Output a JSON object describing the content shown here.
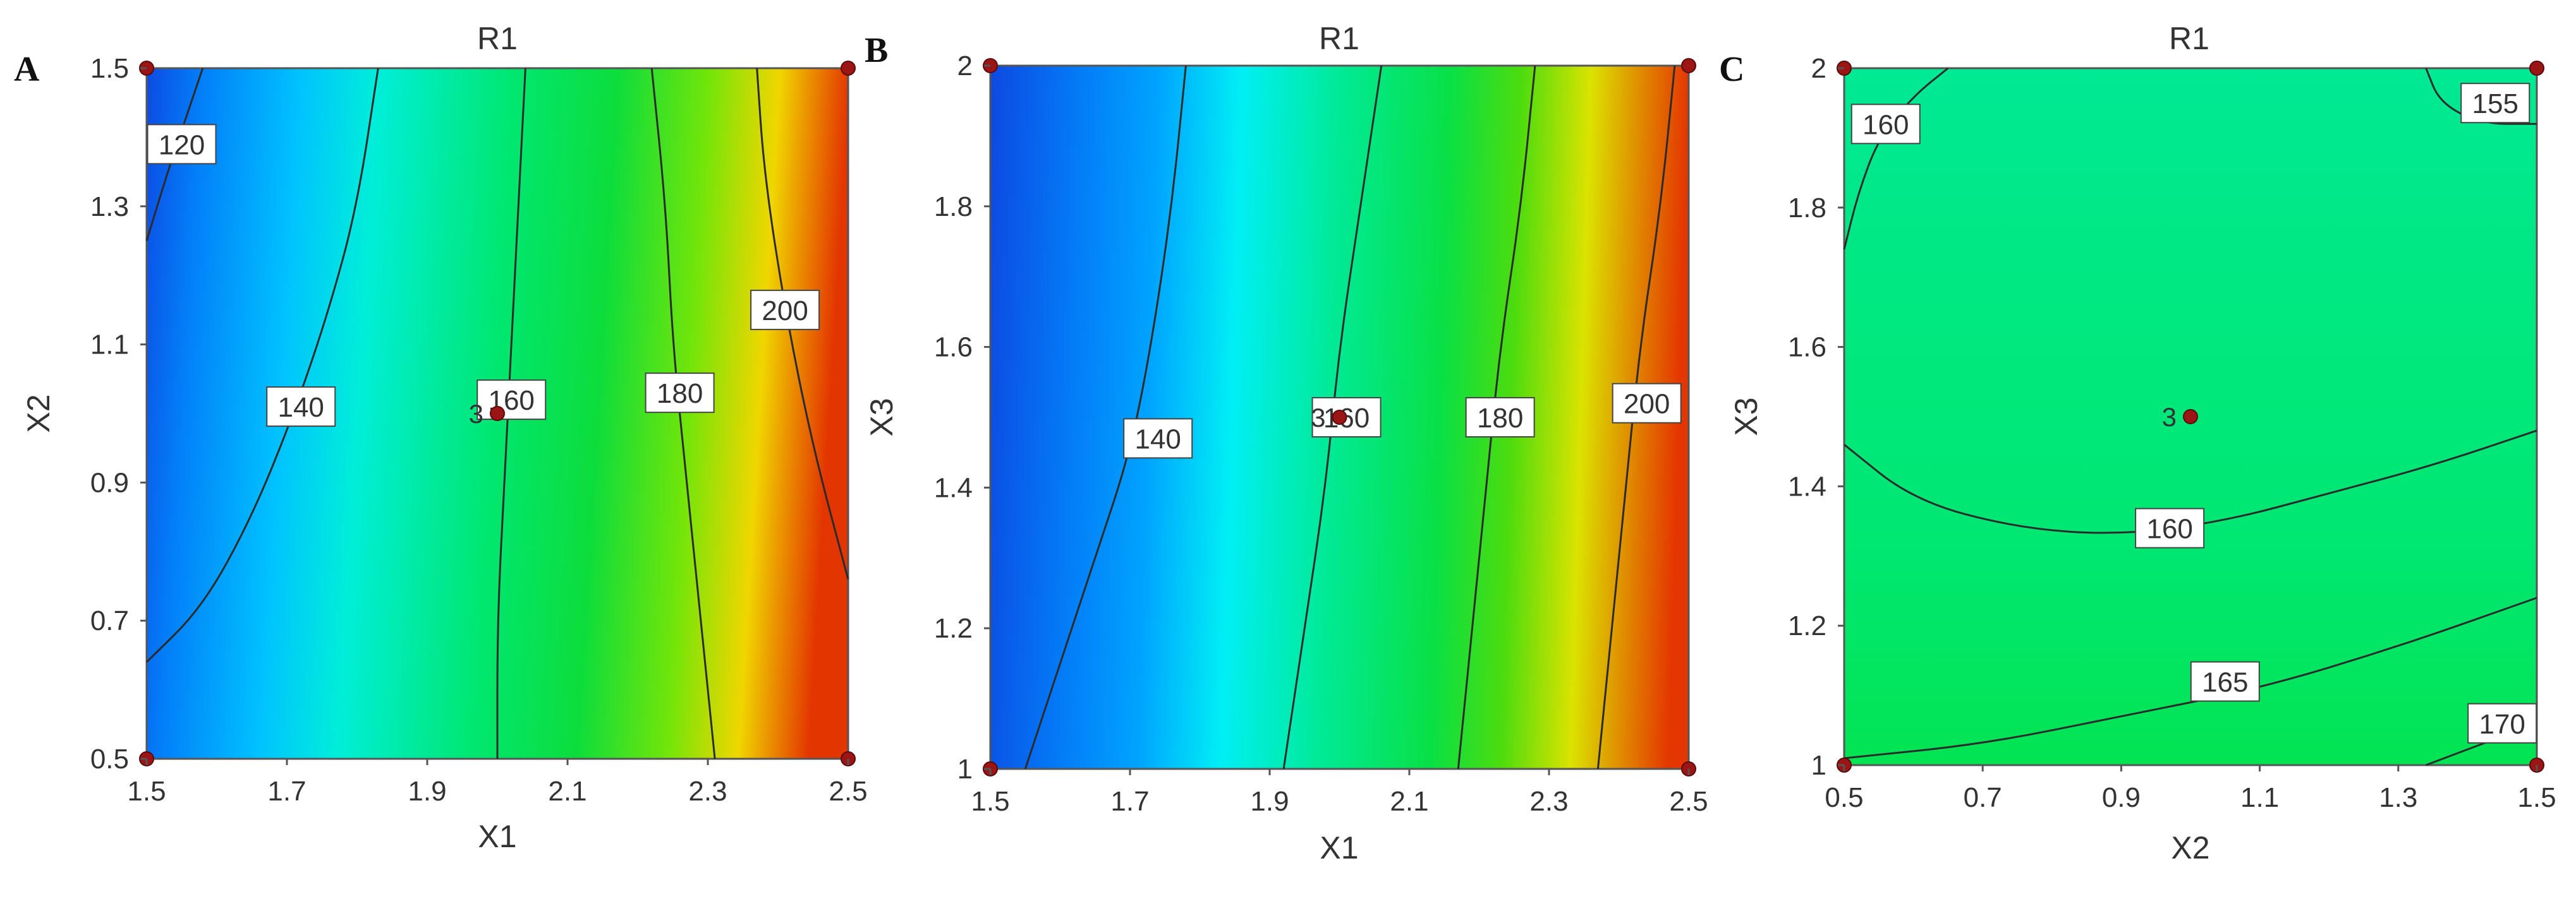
{
  "chart_data": [
    {
      "type": "contour",
      "panel_letter": "A",
      "title": "R1",
      "xlabel": "X1",
      "ylabel": "X2",
      "xlim": [
        1.5,
        2.5
      ],
      "ylim": [
        0.5,
        1.5
      ],
      "x_ticks": [
        "1.5",
        "1.7",
        "1.9",
        "2.1",
        "2.3",
        "2.5"
      ],
      "y_ticks": [
        "0.5",
        "0.7",
        "0.9",
        "1.1",
        "1.3",
        "1.5"
      ],
      "fill_range": [
        110,
        215
      ],
      "contours": [
        {
          "level": "120",
          "points": [
            [
              1.5,
              1.25
            ],
            [
              1.53,
              1.35
            ],
            [
              1.56,
              1.44
            ],
            [
              1.58,
              1.5
            ]
          ],
          "label_at": [
            1.55,
            1.39
          ]
        },
        {
          "level": "140",
          "points": [
            [
              1.5,
              0.64
            ],
            [
              1.58,
              0.72
            ],
            [
              1.65,
              0.85
            ],
            [
              1.71,
              1.0
            ],
            [
              1.76,
              1.15
            ],
            [
              1.8,
              1.3
            ],
            [
              1.83,
              1.5
            ]
          ],
          "label_at": [
            1.72,
            1.01
          ]
        },
        {
          "level": "160",
          "points": [
            [
              2.0,
              0.5
            ],
            [
              2.0,
              0.7
            ],
            [
              2.01,
              0.9
            ],
            [
              2.02,
              1.1
            ],
            [
              2.03,
              1.3
            ],
            [
              2.04,
              1.5
            ]
          ],
          "label_at": [
            2.02,
            1.02
          ]
        },
        {
          "level": "180",
          "points": [
            [
              2.31,
              0.5
            ],
            [
              2.29,
              0.7
            ],
            [
              2.27,
              0.9
            ],
            [
              2.25,
              1.1
            ],
            [
              2.24,
              1.3
            ],
            [
              2.22,
              1.5
            ]
          ],
          "label_at": [
            2.26,
            1.03
          ]
        },
        {
          "level": "200",
          "points": [
            [
              2.5,
              0.76
            ],
            [
              2.45,
              0.95
            ],
            [
              2.41,
              1.15
            ],
            [
              2.38,
              1.35
            ],
            [
              2.37,
              1.5
            ]
          ],
          "label_at": [
            2.41,
            1.15
          ]
        }
      ],
      "design_points": [
        [
          1.5,
          0.5
        ],
        [
          1.5,
          1.5
        ],
        [
          2.5,
          0.5
        ],
        [
          2.5,
          1.5
        ],
        [
          2.0,
          1.0
        ]
      ],
      "center_point": {
        "x": 2.0,
        "y": 1.0,
        "replicates": "3"
      }
    },
    {
      "type": "contour",
      "panel_letter": "B",
      "title": "R1",
      "xlabel": "X1",
      "ylabel": "X3",
      "xlim": [
        1.5,
        2.5
      ],
      "ylim": [
        1.0,
        2.0
      ],
      "x_ticks": [
        "1.5",
        "1.7",
        "1.9",
        "2.1",
        "2.3",
        "2.5"
      ],
      "y_ticks": [
        "1",
        "1.2",
        "1.4",
        "1.6",
        "1.8",
        "2"
      ],
      "fill_range": [
        118,
        215
      ],
      "contours": [
        {
          "level": "140",
          "points": [
            [
              1.55,
              1.0
            ],
            [
              1.6,
              1.15
            ],
            [
              1.65,
              1.3
            ],
            [
              1.7,
              1.45
            ],
            [
              1.73,
              1.6
            ],
            [
              1.76,
              1.8
            ],
            [
              1.78,
              2.0
            ]
          ],
          "label_at": [
            1.74,
            1.47
          ]
        },
        {
          "level": "160",
          "points": [
            [
              1.92,
              1.0
            ],
            [
              1.95,
              1.2
            ],
            [
              1.98,
              1.4
            ],
            [
              2.0,
              1.6
            ],
            [
              2.03,
              1.8
            ],
            [
              2.06,
              2.0
            ]
          ],
          "label_at": [
            2.01,
            1.5
          ]
        },
        {
          "level": "180",
          "points": [
            [
              2.17,
              1.0
            ],
            [
              2.19,
              1.2
            ],
            [
              2.21,
              1.4
            ],
            [
              2.23,
              1.6
            ],
            [
              2.26,
              1.8
            ],
            [
              2.28,
              2.0
            ]
          ],
          "label_at": [
            2.23,
            1.5
          ]
        },
        {
          "level": "200",
          "points": [
            [
              2.37,
              1.0
            ],
            [
              2.39,
              1.2
            ],
            [
              2.41,
              1.4
            ],
            [
              2.43,
              1.6
            ],
            [
              2.46,
              1.8
            ],
            [
              2.48,
              2.0
            ]
          ],
          "label_at": [
            2.44,
            1.52
          ]
        }
      ],
      "design_points": [
        [
          1.5,
          1.0
        ],
        [
          1.5,
          2.0
        ],
        [
          2.5,
          1.0
        ],
        [
          2.5,
          2.0
        ],
        [
          2.0,
          1.5
        ]
      ],
      "center_point": {
        "x": 2.0,
        "y": 1.5,
        "replicates": "3"
      }
    },
    {
      "type": "contour",
      "panel_letter": "C",
      "title": "R1",
      "xlabel": "X2",
      "ylabel": "X3",
      "xlim": [
        0.5,
        1.5
      ],
      "ylim": [
        1.0,
        2.0
      ],
      "x_ticks": [
        "0.5",
        "0.7",
        "0.9",
        "1.1",
        "1.3",
        "1.5"
      ],
      "y_ticks": [
        "1",
        "1.2",
        "1.4",
        "1.6",
        "1.8",
        "2"
      ],
      "fill_range": [
        110,
        215
      ],
      "contours": [
        {
          "level": "155",
          "points": [
            [
              1.34,
              2.0
            ],
            [
              1.36,
              1.95
            ],
            [
              1.42,
              1.92
            ],
            [
              1.5,
              1.92
            ]
          ],
          "label_at": [
            1.44,
            1.95
          ]
        },
        {
          "level": "160",
          "points": [
            [
              0.5,
              1.74
            ],
            [
              0.52,
              1.82
            ],
            [
              0.55,
              1.9
            ],
            [
              0.6,
              1.96
            ],
            [
              0.65,
              2.0
            ]
          ],
          "label_at": [
            0.56,
            1.92
          ]
        },
        {
          "level": "160",
          "points": [
            [
              0.5,
              1.46
            ],
            [
              0.6,
              1.38
            ],
            [
              0.75,
              1.34
            ],
            [
              0.9,
              1.33
            ],
            [
              1.05,
              1.35
            ],
            [
              1.2,
              1.39
            ],
            [
              1.35,
              1.43
            ],
            [
              1.5,
              1.48
            ]
          ],
          "label_at": [
            0.97,
            1.34
          ]
        },
        {
          "level": "165",
          "points": [
            [
              0.5,
              1.01
            ],
            [
              0.7,
              1.03
            ],
            [
              0.9,
              1.07
            ],
            [
              1.1,
              1.11
            ],
            [
              1.3,
              1.17
            ],
            [
              1.5,
              1.24
            ]
          ],
          "label_at": [
            1.05,
            1.12
          ]
        },
        {
          "level": "170",
          "points": [
            [
              1.34,
              1.0
            ],
            [
              1.42,
              1.03
            ],
            [
              1.5,
              1.06
            ]
          ],
          "label_at": [
            1.45,
            1.06
          ]
        }
      ],
      "design_points": [
        [
          0.5,
          1.0
        ],
        [
          0.5,
          2.0
        ],
        [
          1.5,
          1.0
        ],
        [
          1.5,
          2.0
        ],
        [
          1.0,
          1.5
        ]
      ],
      "center_point": {
        "x": 1.0,
        "y": 1.5,
        "replicates": "3"
      }
    }
  ]
}
